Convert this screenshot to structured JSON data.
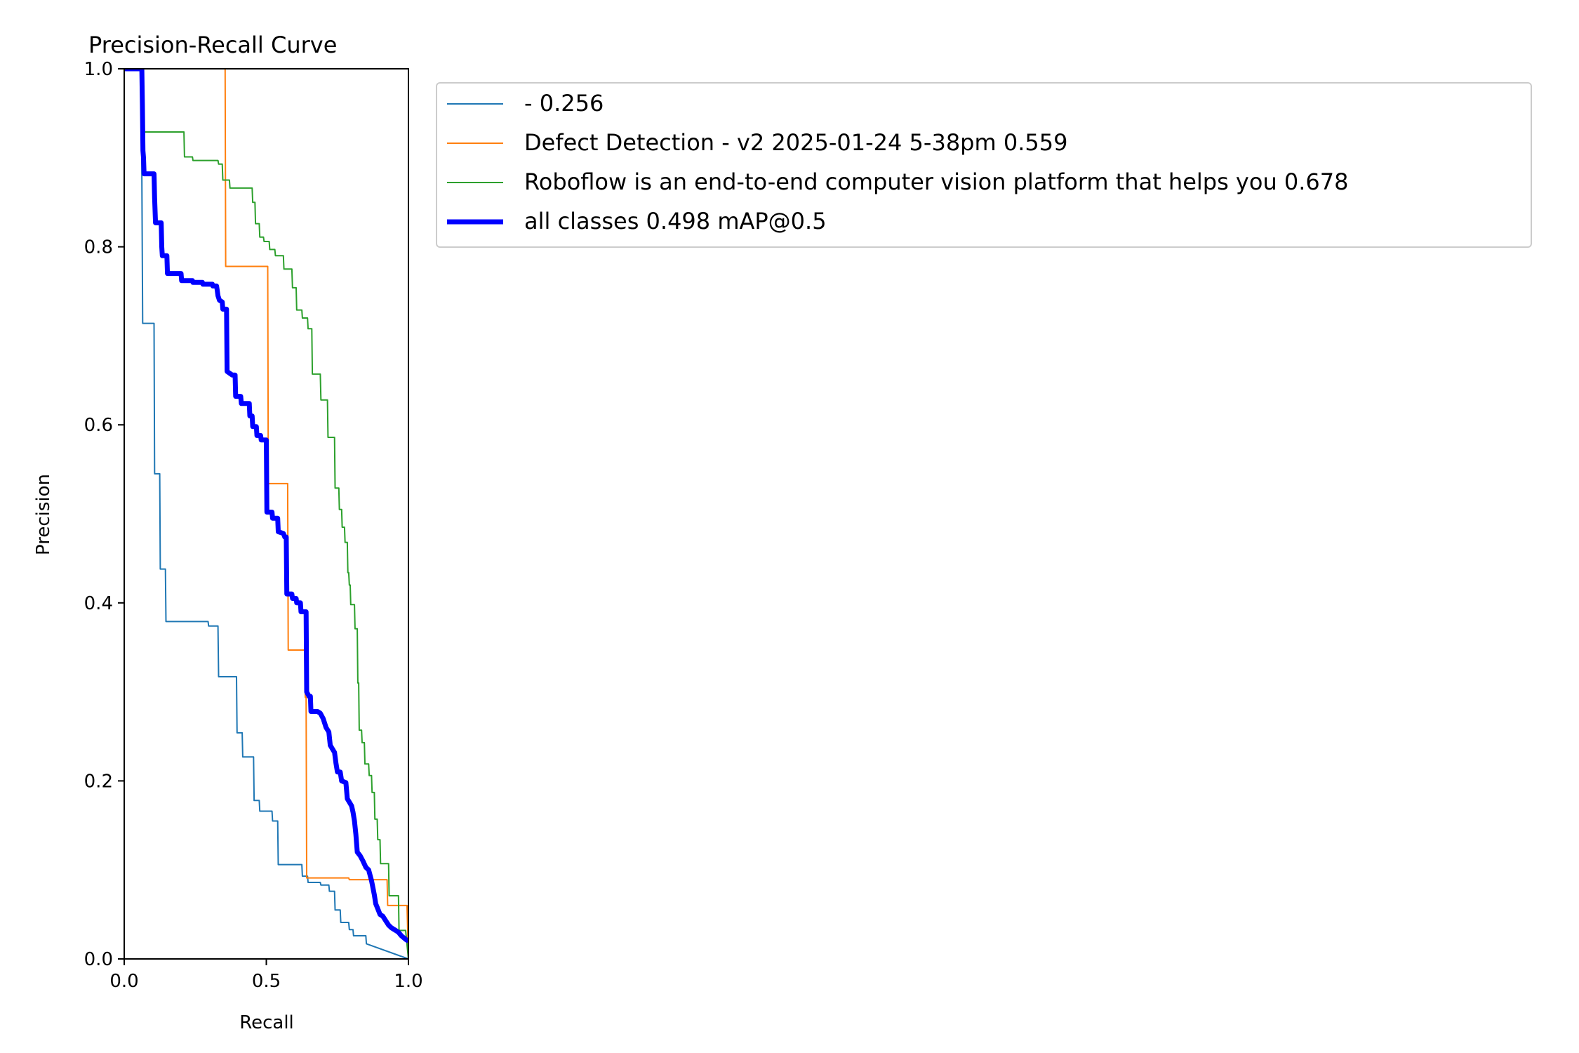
{
  "chart_data": {
    "type": "line",
    "title": "Precision-Recall Curve",
    "xlabel": "Recall",
    "ylabel": "Precision",
    "xlim": [
      0,
      1
    ],
    "ylim": [
      0,
      1
    ],
    "x_ticks": [
      "0.0",
      "0.5",
      "1.0"
    ],
    "y_ticks": [
      "0.0",
      "0.2",
      "0.4",
      "0.6",
      "0.8",
      "1.0"
    ],
    "grid": false,
    "legend_position": "outside-right-top",
    "series": [
      {
        "name": "- 0.256",
        "color": "#1f77b4",
        "emphasis": false,
        "points": [
          [
            0.0,
            1.0
          ],
          [
            0.06,
            1.0
          ],
          [
            0.065,
            0.714
          ],
          [
            0.105,
            0.714
          ],
          [
            0.107,
            0.545
          ],
          [
            0.125,
            0.545
          ],
          [
            0.127,
            0.438
          ],
          [
            0.145,
            0.438
          ],
          [
            0.147,
            0.379
          ],
          [
            0.295,
            0.379
          ],
          [
            0.297,
            0.374
          ],
          [
            0.33,
            0.374
          ],
          [
            0.332,
            0.317
          ],
          [
            0.395,
            0.317
          ],
          [
            0.397,
            0.254
          ],
          [
            0.415,
            0.254
          ],
          [
            0.417,
            0.227
          ],
          [
            0.455,
            0.227
          ],
          [
            0.457,
            0.178
          ],
          [
            0.475,
            0.178
          ],
          [
            0.477,
            0.166
          ],
          [
            0.52,
            0.166
          ],
          [
            0.522,
            0.155
          ],
          [
            0.54,
            0.155
          ],
          [
            0.542,
            0.106
          ],
          [
            0.625,
            0.106
          ],
          [
            0.627,
            0.093
          ],
          [
            0.645,
            0.093
          ],
          [
            0.647,
            0.086
          ],
          [
            0.69,
            0.086
          ],
          [
            0.692,
            0.083
          ],
          [
            0.72,
            0.083
          ],
          [
            0.722,
            0.076
          ],
          [
            0.74,
            0.076
          ],
          [
            0.742,
            0.055
          ],
          [
            0.76,
            0.055
          ],
          [
            0.762,
            0.041
          ],
          [
            0.79,
            0.041
          ],
          [
            0.792,
            0.033
          ],
          [
            0.805,
            0.033
          ],
          [
            0.807,
            0.026
          ],
          [
            0.85,
            0.026
          ],
          [
            0.852,
            0.017
          ],
          [
            1.0,
            0.0
          ]
        ]
      },
      {
        "name": "Defect Detection - v2 2025-01-24 5-38pm 0.559",
        "color": "#ff7f0e",
        "emphasis": false,
        "points": [
          [
            0.0,
            1.0
          ],
          [
            0.355,
            1.0
          ],
          [
            0.357,
            0.778
          ],
          [
            0.505,
            0.778
          ],
          [
            0.507,
            0.534
          ],
          [
            0.575,
            0.534
          ],
          [
            0.577,
            0.347
          ],
          [
            0.635,
            0.347
          ],
          [
            0.637,
            0.294
          ],
          [
            0.64,
            0.294
          ],
          [
            0.642,
            0.091
          ],
          [
            0.79,
            0.091
          ],
          [
            0.792,
            0.089
          ],
          [
            0.925,
            0.089
          ],
          [
            0.927,
            0.06
          ],
          [
            0.995,
            0.06
          ],
          [
            1.0,
            0.0
          ]
        ]
      },
      {
        "name": "Roboflow is an end-to-end computer vision platform that helps you 0.678",
        "color": "#2ca02c",
        "emphasis": false,
        "points": [
          [
            0.0,
            1.0
          ],
          [
            0.065,
            1.0
          ],
          [
            0.07,
            0.929
          ],
          [
            0.21,
            0.929
          ],
          [
            0.212,
            0.901
          ],
          [
            0.24,
            0.901
          ],
          [
            0.242,
            0.897
          ],
          [
            0.33,
            0.897
          ],
          [
            0.332,
            0.893
          ],
          [
            0.345,
            0.893
          ],
          [
            0.347,
            0.875
          ],
          [
            0.37,
            0.875
          ],
          [
            0.372,
            0.866
          ],
          [
            0.45,
            0.866
          ],
          [
            0.452,
            0.85
          ],
          [
            0.46,
            0.85
          ],
          [
            0.462,
            0.826
          ],
          [
            0.475,
            0.826
          ],
          [
            0.477,
            0.811
          ],
          [
            0.49,
            0.811
          ],
          [
            0.492,
            0.806
          ],
          [
            0.51,
            0.806
          ],
          [
            0.512,
            0.797
          ],
          [
            0.53,
            0.797
          ],
          [
            0.532,
            0.79
          ],
          [
            0.56,
            0.79
          ],
          [
            0.562,
            0.775
          ],
          [
            0.59,
            0.775
          ],
          [
            0.592,
            0.754
          ],
          [
            0.605,
            0.754
          ],
          [
            0.607,
            0.729
          ],
          [
            0.625,
            0.729
          ],
          [
            0.627,
            0.72
          ],
          [
            0.645,
            0.72
          ],
          [
            0.647,
            0.708
          ],
          [
            0.66,
            0.708
          ],
          [
            0.662,
            0.657
          ],
          [
            0.69,
            0.657
          ],
          [
            0.692,
            0.628
          ],
          [
            0.715,
            0.628
          ],
          [
            0.717,
            0.586
          ],
          [
            0.74,
            0.586
          ],
          [
            0.742,
            0.529
          ],
          [
            0.755,
            0.529
          ],
          [
            0.757,
            0.505
          ],
          [
            0.765,
            0.505
          ],
          [
            0.767,
            0.485
          ],
          [
            0.775,
            0.485
          ],
          [
            0.777,
            0.468
          ],
          [
            0.785,
            0.468
          ],
          [
            0.787,
            0.434
          ],
          [
            0.79,
            0.434
          ],
          [
            0.792,
            0.42
          ],
          [
            0.795,
            0.42
          ],
          [
            0.797,
            0.398
          ],
          [
            0.81,
            0.398
          ],
          [
            0.812,
            0.371
          ],
          [
            0.82,
            0.371
          ],
          [
            0.822,
            0.31
          ],
          [
            0.825,
            0.31
          ],
          [
            0.827,
            0.257
          ],
          [
            0.835,
            0.257
          ],
          [
            0.837,
            0.243
          ],
          [
            0.845,
            0.243
          ],
          [
            0.847,
            0.219
          ],
          [
            0.86,
            0.219
          ],
          [
            0.862,
            0.206
          ],
          [
            0.87,
            0.206
          ],
          [
            0.872,
            0.187
          ],
          [
            0.88,
            0.187
          ],
          [
            0.882,
            0.157
          ],
          [
            0.89,
            0.157
          ],
          [
            0.892,
            0.134
          ],
          [
            0.9,
            0.134
          ],
          [
            0.902,
            0.107
          ],
          [
            0.93,
            0.107
          ],
          [
            0.932,
            0.071
          ],
          [
            0.965,
            0.071
          ],
          [
            0.967,
            0.032
          ],
          [
            0.99,
            0.032
          ],
          [
            1.0,
            0.0
          ]
        ]
      },
      {
        "name": "all classes 0.498 mAP@0.5",
        "color": "#0000ff",
        "emphasis": true,
        "points": [
          [
            0.0,
            1.0
          ],
          [
            0.062,
            1.0
          ],
          [
            0.064,
            0.96
          ],
          [
            0.066,
            0.908
          ],
          [
            0.068,
            0.9
          ],
          [
            0.07,
            0.882
          ],
          [
            0.105,
            0.882
          ],
          [
            0.107,
            0.855
          ],
          [
            0.11,
            0.827
          ],
          [
            0.13,
            0.827
          ],
          [
            0.132,
            0.8
          ],
          [
            0.134,
            0.79
          ],
          [
            0.15,
            0.79
          ],
          [
            0.152,
            0.77
          ],
          [
            0.2,
            0.77
          ],
          [
            0.202,
            0.762
          ],
          [
            0.24,
            0.762
          ],
          [
            0.242,
            0.76
          ],
          [
            0.275,
            0.76
          ],
          [
            0.277,
            0.758
          ],
          [
            0.31,
            0.758
          ],
          [
            0.312,
            0.756
          ],
          [
            0.325,
            0.756
          ],
          [
            0.327,
            0.752
          ],
          [
            0.33,
            0.745
          ],
          [
            0.335,
            0.74
          ],
          [
            0.345,
            0.738
          ],
          [
            0.347,
            0.73
          ],
          [
            0.36,
            0.73
          ],
          [
            0.362,
            0.66
          ],
          [
            0.38,
            0.656
          ],
          [
            0.39,
            0.656
          ],
          [
            0.392,
            0.632
          ],
          [
            0.41,
            0.632
          ],
          [
            0.412,
            0.624
          ],
          [
            0.44,
            0.624
          ],
          [
            0.442,
            0.61
          ],
          [
            0.45,
            0.61
          ],
          [
            0.452,
            0.598
          ],
          [
            0.465,
            0.598
          ],
          [
            0.467,
            0.588
          ],
          [
            0.48,
            0.588
          ],
          [
            0.482,
            0.583
          ],
          [
            0.5,
            0.583
          ],
          [
            0.502,
            0.502
          ],
          [
            0.52,
            0.502
          ],
          [
            0.522,
            0.495
          ],
          [
            0.54,
            0.495
          ],
          [
            0.542,
            0.48
          ],
          [
            0.56,
            0.478
          ],
          [
            0.565,
            0.474
          ],
          [
            0.57,
            0.474
          ],
          [
            0.572,
            0.41
          ],
          [
            0.59,
            0.41
          ],
          [
            0.592,
            0.405
          ],
          [
            0.605,
            0.405
          ],
          [
            0.607,
            0.4
          ],
          [
            0.62,
            0.4
          ],
          [
            0.622,
            0.39
          ],
          [
            0.64,
            0.39
          ],
          [
            0.642,
            0.3
          ],
          [
            0.65,
            0.295
          ],
          [
            0.655,
            0.295
          ],
          [
            0.657,
            0.278
          ],
          [
            0.68,
            0.278
          ],
          [
            0.69,
            0.276
          ],
          [
            0.7,
            0.27
          ],
          [
            0.71,
            0.26
          ],
          [
            0.72,
            0.255
          ],
          [
            0.725,
            0.24
          ],
          [
            0.74,
            0.232
          ],
          [
            0.745,
            0.22
          ],
          [
            0.75,
            0.21
          ],
          [
            0.76,
            0.21
          ],
          [
            0.765,
            0.2
          ],
          [
            0.78,
            0.198
          ],
          [
            0.785,
            0.18
          ],
          [
            0.8,
            0.172
          ],
          [
            0.805,
            0.165
          ],
          [
            0.81,
            0.155
          ],
          [
            0.815,
            0.14
          ],
          [
            0.82,
            0.12
          ],
          [
            0.83,
            0.116
          ],
          [
            0.84,
            0.11
          ],
          [
            0.85,
            0.103
          ],
          [
            0.86,
            0.1
          ],
          [
            0.87,
            0.088
          ],
          [
            0.875,
            0.08
          ],
          [
            0.88,
            0.072
          ],
          [
            0.885,
            0.062
          ],
          [
            0.89,
            0.058
          ],
          [
            0.9,
            0.05
          ],
          [
            0.91,
            0.048
          ],
          [
            0.92,
            0.043
          ],
          [
            0.93,
            0.038
          ],
          [
            0.94,
            0.035
          ],
          [
            0.955,
            0.032
          ],
          [
            0.965,
            0.03
          ],
          [
            0.975,
            0.026
          ],
          [
            0.99,
            0.022
          ],
          [
            1.0,
            0.02
          ]
        ]
      }
    ]
  }
}
